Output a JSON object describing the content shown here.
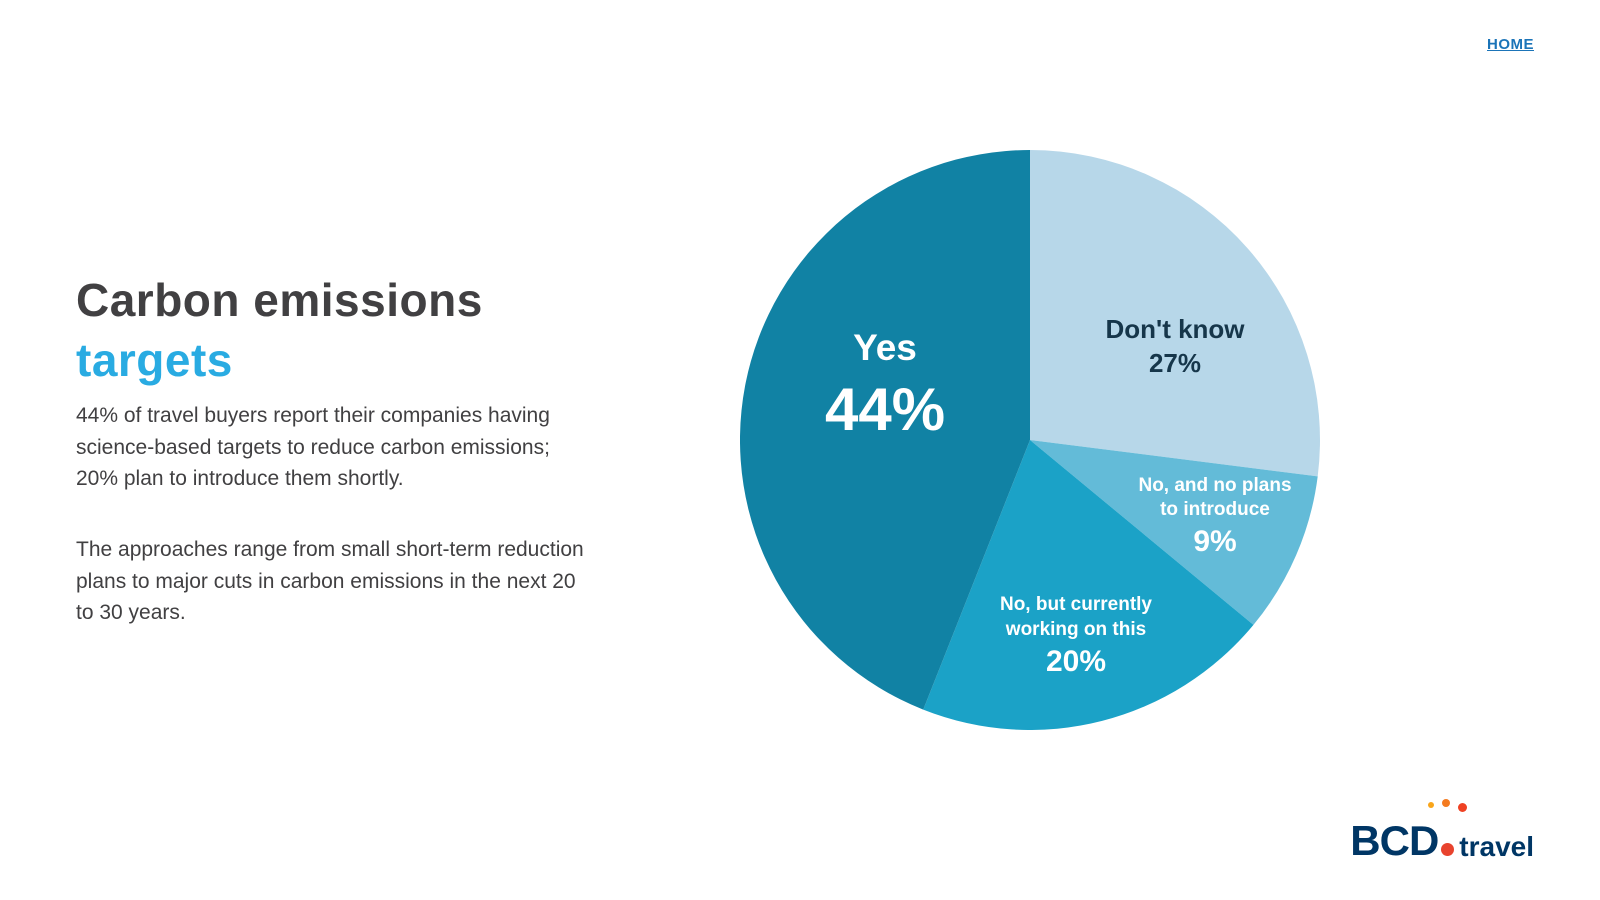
{
  "page": {
    "home_link": "HOME"
  },
  "title": {
    "line1": "Carbon emissions",
    "line2": "targets"
  },
  "paragraphs": {
    "p1": "44% of travel buyers report their companies having science-based targets to reduce carbon emissions; 20% plan to introduce them shortly.",
    "p2": "The approaches range from small short-term reduction plans to major cuts in carbon emissions in the next 20 to 30 years."
  },
  "chart_data": {
    "type": "pie",
    "title": "Carbon emissions targets",
    "direction": "clockwise",
    "start_angle_deg": 0,
    "legend_position": "none",
    "slices": [
      {
        "label": "Don't know",
        "value": 27,
        "pct": "27%",
        "color": "#b7d7e9"
      },
      {
        "label": "No, and no plans to introduce",
        "value": 9,
        "pct": "9%",
        "color": "#63bbd8"
      },
      {
        "label": "No, but currently working on this",
        "value": 20,
        "pct": "20%",
        "color": "#1ba2c7"
      },
      {
        "label": "Yes",
        "value": 44,
        "pct": "44%",
        "color": "#1182a4"
      }
    ]
  },
  "logo": {
    "bcd": "BCD",
    "travel": "travel"
  }
}
